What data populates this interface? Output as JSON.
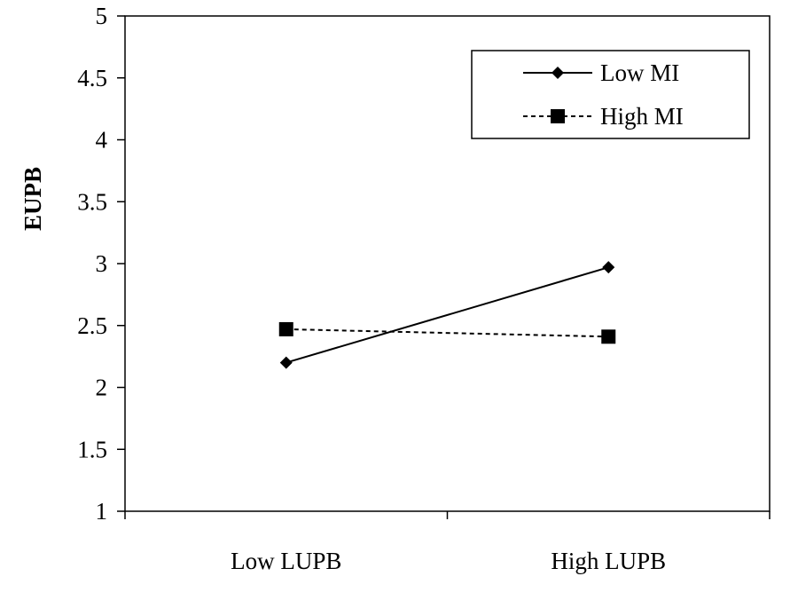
{
  "chart_data": {
    "type": "line",
    "title": "",
    "xlabel": "",
    "ylabel": "EUPB",
    "categories": [
      "Low LUPB",
      "High LUPB"
    ],
    "series": [
      {
        "name": "Low MI",
        "values": [
          2.2,
          2.97
        ],
        "marker": "diamond",
        "line": "solid",
        "color": "#000000"
      },
      {
        "name": "High MI",
        "values": [
          2.47,
          2.41
        ],
        "marker": "square",
        "line": "dashed",
        "color": "#000000"
      }
    ],
    "ylim": [
      1,
      5
    ],
    "yticks": [
      "1",
      "1.5",
      "2",
      "2.5",
      "3",
      "3.5",
      "4",
      "4.5",
      "5"
    ],
    "grid": false,
    "legend_position": "top-right"
  }
}
